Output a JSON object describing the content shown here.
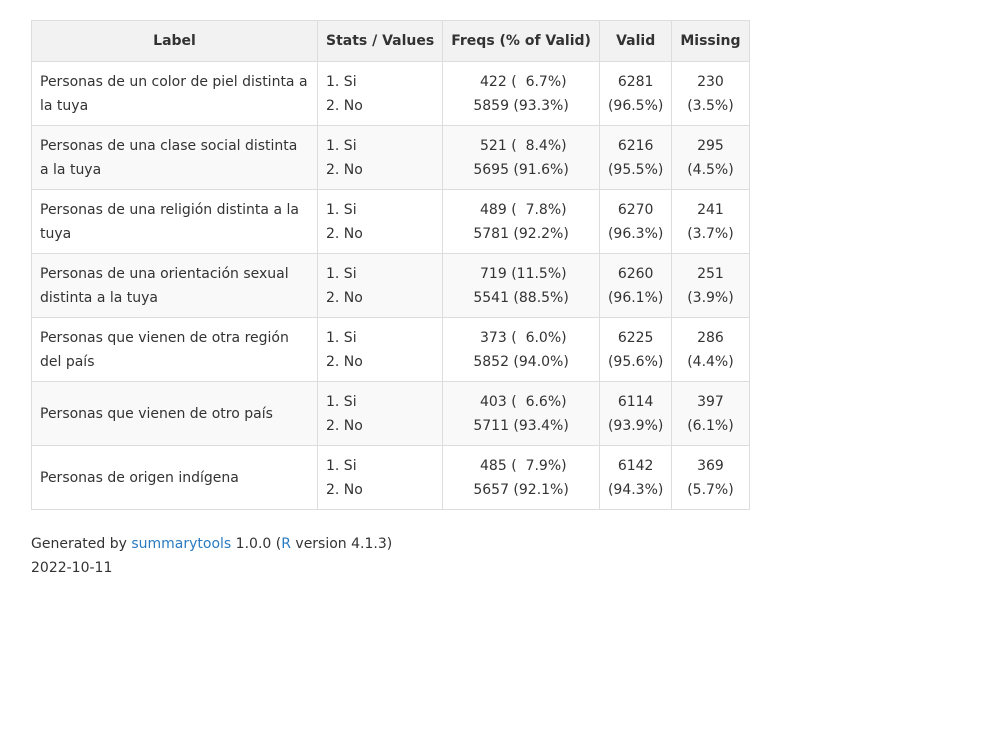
{
  "headers": {
    "label": "Label",
    "stats": "Stats / Values",
    "freqs": "Freqs (% of Valid)",
    "valid": "Valid",
    "missing": "Missing"
  },
  "rows": [
    {
      "label": "Personas de un color de piel distinta a la tuya",
      "stat1": "1. Si",
      "stat2": "2. No",
      "freq1": " 422 (  6.7%)",
      "freq2": "5859 (93.3%)",
      "valid_n": "6281",
      "valid_pct": "(96.5%)",
      "missing_n": "230",
      "missing_pct": "(3.5%)"
    },
    {
      "label": "Personas de una clase social distinta a la tuya",
      "stat1": "1. Si",
      "stat2": "2. No",
      "freq1": " 521 (  8.4%)",
      "freq2": "5695 (91.6%)",
      "valid_n": "6216",
      "valid_pct": "(95.5%)",
      "missing_n": "295",
      "missing_pct": "(4.5%)"
    },
    {
      "label": "Personas de una religión distinta a la tuya",
      "stat1": "1. Si",
      "stat2": "2. No",
      "freq1": " 489 (  7.8%)",
      "freq2": "5781 (92.2%)",
      "valid_n": "6270",
      "valid_pct": "(96.3%)",
      "missing_n": "241",
      "missing_pct": "(3.7%)"
    },
    {
      "label": "Personas de una orientación sexual distinta a la tuya",
      "stat1": "1. Si",
      "stat2": "2. No",
      "freq1": " 719 (11.5%)",
      "freq2": "5541 (88.5%)",
      "valid_n": "6260",
      "valid_pct": "(96.1%)",
      "missing_n": "251",
      "missing_pct": "(3.9%)"
    },
    {
      "label": "Personas que vienen de otra región del país",
      "stat1": "1. Si",
      "stat2": "2. No",
      "freq1": " 373 (  6.0%)",
      "freq2": "5852 (94.0%)",
      "valid_n": "6225",
      "valid_pct": "(95.6%)",
      "missing_n": "286",
      "missing_pct": "(4.4%)"
    },
    {
      "label": "Personas que vienen de otro país",
      "stat1": "1. Si",
      "stat2": "2. No",
      "freq1": " 403 (  6.6%)",
      "freq2": "5711 (93.4%)",
      "valid_n": "6114",
      "valid_pct": "(93.9%)",
      "missing_n": "397",
      "missing_pct": "(6.1%)"
    },
    {
      "label": "Personas de origen indígena",
      "stat1": "1. Si",
      "stat2": "2. No",
      "freq1": " 485 (  7.9%)",
      "freq2": "5657 (92.1%)",
      "valid_n": "6142",
      "valid_pct": "(94.3%)",
      "missing_n": "369",
      "missing_pct": "(5.7%)"
    }
  ],
  "footer": {
    "generated_by": "Generated by ",
    "tool_link": "summarytools",
    "tool_version": " 1.0.0 (",
    "r_link": "R",
    "r_version": " version 4.1.3)",
    "date": "2022-10-11"
  },
  "colors": {
    "link": "#2a7bc0",
    "header_bg": "#f2f2f2",
    "border": "#dddddd"
  }
}
